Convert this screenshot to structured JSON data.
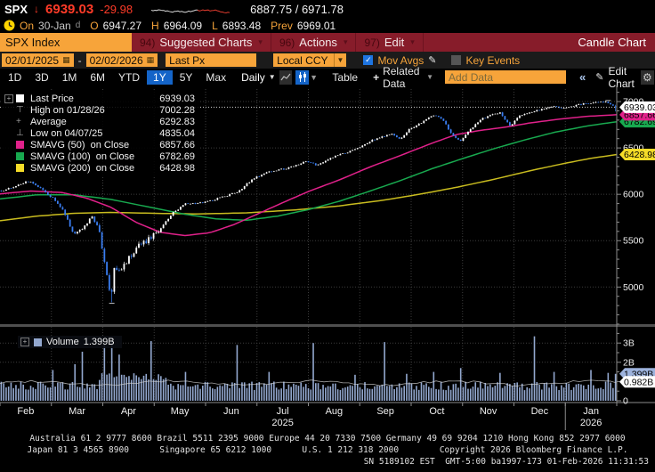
{
  "header": {
    "ticker": "SPX",
    "arrow": "↓",
    "last": "6939.03",
    "change": "-29.98",
    "bid_ask": "6887.75 / 6971.78",
    "session": {
      "on_label": "On",
      "date": "30-Jan",
      "d": "d",
      "o_label": "O",
      "open": "6947.27",
      "h_label": "H",
      "high": "6964.09",
      "l_label": "L",
      "low": "6893.48",
      "prev_label": "Prev",
      "prev": "6969.01"
    }
  },
  "menubar": {
    "ticker_box": "SPX Index",
    "items": [
      {
        "num": "94)",
        "label": "Suggested Charts",
        "caret": "▾"
      },
      {
        "num": "96)",
        "label": "Actions",
        "caret": "▾"
      },
      {
        "num": "97)",
        "label": "Edit",
        "caret": "▾"
      }
    ],
    "right_label": "Candle Chart"
  },
  "controls": {
    "date_from": "02/01/2025",
    "date_to": "02/02/2026",
    "px_field": "Last Px",
    "ccy": "Local CCY",
    "mov_avgs": "Mov Avgs",
    "mov_avgs_checked": true,
    "key_events": "Key Events",
    "key_events_checked": false
  },
  "toolbar": {
    "ranges": [
      "1D",
      "3D",
      "1M",
      "6M",
      "YTD",
      "1Y",
      "5Y",
      "Max"
    ],
    "active_range": "1Y",
    "period": "Daily",
    "table": "Table",
    "related_data": "Related Data",
    "add_data_placeholder": "Add Data",
    "collapse": "«",
    "edit_chart": "Edit Chart"
  },
  "legend": {
    "rows": [
      {
        "marker": "swatch",
        "color": "#ffffff",
        "label": "Last Price",
        "value": "6939.03"
      },
      {
        "marker": "high",
        "color": "#9a9a9a",
        "label": "High on 01/28/26",
        "value": "7002.28"
      },
      {
        "marker": "avg",
        "color": "#9a9a9a",
        "label": "Average",
        "value": "6292.83"
      },
      {
        "marker": "low",
        "color": "#9a9a9a",
        "label": "Low on 04/07/25",
        "value": "4835.04"
      },
      {
        "marker": "swatch",
        "color": "#e0218a",
        "label": "SMAVG (50)  on Close",
        "value": "6857.66"
      },
      {
        "marker": "swatch",
        "color": "#18a94f",
        "label": "SMAVG (100)  on Close",
        "value": "6782.69"
      },
      {
        "marker": "swatch",
        "color": "#f5dc28",
        "label": "SMAVG (200)  on Close",
        "value": "6428.98"
      }
    ]
  },
  "volume_legend": {
    "label": "Volume",
    "value": "1.399B",
    "swatch": "#93a8cf"
  },
  "chart_data": {
    "type": "candlestick",
    "symbol": "SPX Index",
    "interval": "Daily",
    "range_label": "1Y  02/01/2025 - 02/02/2026",
    "x_axis": {
      "months": [
        "Feb",
        "Mar",
        "Apr",
        "May",
        "Jun",
        "Jul",
        "Aug",
        "Sep",
        "Oct",
        "Nov",
        "Dec",
        "Jan"
      ],
      "years": [
        {
          "label": "2025",
          "month_index": 5
        },
        {
          "label": "2026",
          "month_index": 11
        }
      ]
    },
    "y_axis": {
      "ticks": [
        5000,
        5500,
        6000,
        6500,
        7000
      ],
      "range": [
        4590,
        7135
      ]
    },
    "volume_axis": {
      "ticks": [
        [
          0,
          "0"
        ],
        [
          2,
          "2B"
        ],
        [
          3,
          "3B"
        ]
      ],
      "grid": [
        2,
        3
      ],
      "max": 3.55
    },
    "stats": {
      "last_price": 6939.03,
      "open": 6947.27,
      "high_day": 6964.09,
      "low_day": 6893.48,
      "high": 7002.28,
      "high_date": "01/28/26",
      "low": 4835.04,
      "low_date": "04/07/25",
      "average": 6292.83,
      "smavg50": 6857.66,
      "smavg100": 6782.69,
      "smavg200": 6428.98,
      "volume_last": 1.399,
      "volume_avg": 0.982
    },
    "price_anchors": [
      [
        0.0,
        6040
      ],
      [
        0.02,
        6075
      ],
      [
        0.045,
        6145
      ],
      [
        0.065,
        6060
      ],
      [
        0.085,
        5950
      ],
      [
        0.1,
        5830
      ],
      [
        0.118,
        5570
      ],
      [
        0.132,
        5630
      ],
      [
        0.148,
        5755
      ],
      [
        0.158,
        5640
      ],
      [
        0.168,
        5270
      ],
      [
        0.178,
        4880
      ],
      [
        0.184,
        5210
      ],
      [
        0.193,
        5170
      ],
      [
        0.205,
        5290
      ],
      [
        0.222,
        5440
      ],
      [
        0.243,
        5525
      ],
      [
        0.262,
        5650
      ],
      [
        0.28,
        5805
      ],
      [
        0.3,
        5895
      ],
      [
        0.33,
        5910
      ],
      [
        0.358,
        5965
      ],
      [
        0.385,
        6025
      ],
      [
        0.408,
        6160
      ],
      [
        0.435,
        6245
      ],
      [
        0.465,
        6280
      ],
      [
        0.495,
        6355
      ],
      [
        0.515,
        6315
      ],
      [
        0.545,
        6415
      ],
      [
        0.575,
        6480
      ],
      [
        0.605,
        6585
      ],
      [
        0.635,
        6655
      ],
      [
        0.65,
        6600
      ],
      [
        0.665,
        6705
      ],
      [
        0.685,
        6775
      ],
      [
        0.703,
        6860
      ],
      [
        0.718,
        6815
      ],
      [
        0.733,
        6650
      ],
      [
        0.748,
        6575
      ],
      [
        0.762,
        6690
      ],
      [
        0.78,
        6805
      ],
      [
        0.797,
        6855
      ],
      [
        0.812,
        6885
      ],
      [
        0.828,
        6735
      ],
      [
        0.843,
        6840
      ],
      [
        0.86,
        6885
      ],
      [
        0.88,
        6915
      ],
      [
        0.9,
        6945
      ],
      [
        0.918,
        6925
      ],
      [
        0.938,
        6965
      ],
      [
        0.958,
        6985
      ],
      [
        0.986,
        6995
      ],
      [
        1.0,
        6940
      ]
    ],
    "sma50_anchors": [
      [
        0,
        6005
      ],
      [
        0.05,
        6035
      ],
      [
        0.1,
        6020
      ],
      [
        0.14,
        5960
      ],
      [
        0.18,
        5860
      ],
      [
        0.22,
        5700
      ],
      [
        0.26,
        5590
      ],
      [
        0.3,
        5555
      ],
      [
        0.34,
        5585
      ],
      [
        0.38,
        5675
      ],
      [
        0.42,
        5795
      ],
      [
        0.46,
        5915
      ],
      [
        0.5,
        6030
      ],
      [
        0.55,
        6155
      ],
      [
        0.6,
        6295
      ],
      [
        0.65,
        6420
      ],
      [
        0.7,
        6550
      ],
      [
        0.74,
        6645
      ],
      [
        0.78,
        6690
      ],
      [
        0.82,
        6725
      ],
      [
        0.86,
        6770
      ],
      [
        0.9,
        6805
      ],
      [
        0.95,
        6840
      ],
      [
        1.0,
        6858
      ]
    ],
    "sma100_anchors": [
      [
        0,
        5950
      ],
      [
        0.06,
        5995
      ],
      [
        0.12,
        5995
      ],
      [
        0.18,
        5945
      ],
      [
        0.24,
        5865
      ],
      [
        0.3,
        5785
      ],
      [
        0.35,
        5735
      ],
      [
        0.4,
        5720
      ],
      [
        0.45,
        5765
      ],
      [
        0.5,
        5835
      ],
      [
        0.55,
        5925
      ],
      [
        0.6,
        6035
      ],
      [
        0.65,
        6150
      ],
      [
        0.7,
        6275
      ],
      [
        0.75,
        6385
      ],
      [
        0.8,
        6490
      ],
      [
        0.85,
        6585
      ],
      [
        0.9,
        6670
      ],
      [
        0.95,
        6735
      ],
      [
        1.0,
        6783
      ]
    ],
    "sma200_anchors": [
      [
        0,
        5715
      ],
      [
        0.06,
        5765
      ],
      [
        0.12,
        5795
      ],
      [
        0.18,
        5805
      ],
      [
        0.25,
        5795
      ],
      [
        0.32,
        5788
      ],
      [
        0.4,
        5800
      ],
      [
        0.48,
        5832
      ],
      [
        0.55,
        5875
      ],
      [
        0.62,
        5935
      ],
      [
        0.68,
        6000
      ],
      [
        0.74,
        6075
      ],
      [
        0.8,
        6160
      ],
      [
        0.86,
        6255
      ],
      [
        0.92,
        6340
      ],
      [
        0.96,
        6390
      ],
      [
        1.0,
        6429
      ]
    ],
    "volume_spikes": [
      [
        0.085,
        1.6
      ],
      [
        0.118,
        1.9
      ],
      [
        0.13,
        2.55
      ],
      [
        0.168,
        2.9
      ],
      [
        0.178,
        3.1
      ],
      [
        0.193,
        2.4
      ],
      [
        0.245,
        3.1
      ],
      [
        0.3,
        1.5
      ],
      [
        0.382,
        2.9
      ],
      [
        0.435,
        1.5
      ],
      [
        0.508,
        3.0
      ],
      [
        0.575,
        1.35
      ],
      [
        0.622,
        3.05
      ],
      [
        0.66,
        1.4
      ],
      [
        0.703,
        1.5
      ],
      [
        0.748,
        1.7
      ],
      [
        0.812,
        1.45
      ],
      [
        0.866,
        3.35
      ],
      [
        0.9,
        1.5
      ],
      [
        0.958,
        1.6
      ],
      [
        0.986,
        1.45
      ]
    ],
    "colors": {
      "up": "#ffffff",
      "down": "#3a7df0",
      "sma50": "#e0218a",
      "sma100": "#18a94f",
      "sma200": "#c9bc1f",
      "sma200_tag": "#f5dc28",
      "volume": "#93a8cf",
      "volume_tag": "#9db3dd",
      "last_tag": "#ffffff",
      "grid": "#3c3c3c",
      "axis": "#8c8c8c"
    }
  },
  "footer": {
    "line1": "Australia 61 2 9777 8600 Brazil 5511 2395 9000 Europe 44 20 7330 7500 Germany 49 69 9204 1210 Hong Kong 852 2977 6000",
    "line2": "Japan 81 3 4565 8900      Singapore 65 6212 1000      U.S. 1 212 318 2000        Copyright 2026 Bloomberg Finance L.P.",
    "line3": "SN 5189102 EST  GMT-5:00 ba1997-173 01-Feb-2026 11:31:53"
  }
}
